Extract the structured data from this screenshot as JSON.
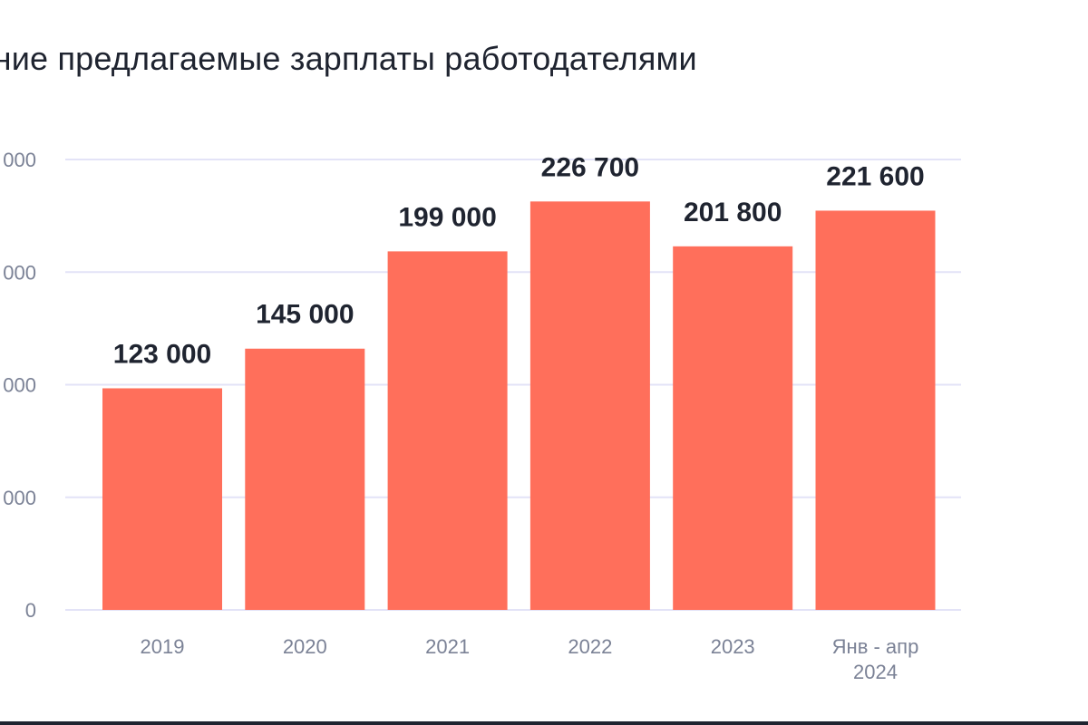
{
  "colors": {
    "bar": "#FF6F5B",
    "grid": "#E3E3F7",
    "text": "#1F2430",
    "axis_text": "#7B8296"
  },
  "chart_data": {
    "type": "bar",
    "title": "едние предлагаемые зарплаты работодателями",
    "categories": [
      [
        "2019"
      ],
      [
        "2020"
      ],
      [
        "2021"
      ],
      [
        "2022"
      ],
      [
        "2023"
      ],
      [
        "Янв - апр",
        "2024"
      ]
    ],
    "values": [
      123000,
      145000,
      199000,
      226700,
      201800,
      221600
    ],
    "value_labels": [
      "123 000",
      "145 000",
      "199 000",
      "226 700",
      "201 800",
      "221 600"
    ],
    "y_ticks": [
      {
        "value": 0,
        "label": "0"
      },
      {
        "value": 62500,
        "label": "000"
      },
      {
        "value": 125000,
        "label": "000"
      },
      {
        "value": 187500,
        "label": "000"
      },
      {
        "value": 250000,
        "label": "000"
      }
    ],
    "ylim": [
      0,
      250000
    ],
    "grid": true,
    "xlabel": "",
    "ylabel": ""
  }
}
